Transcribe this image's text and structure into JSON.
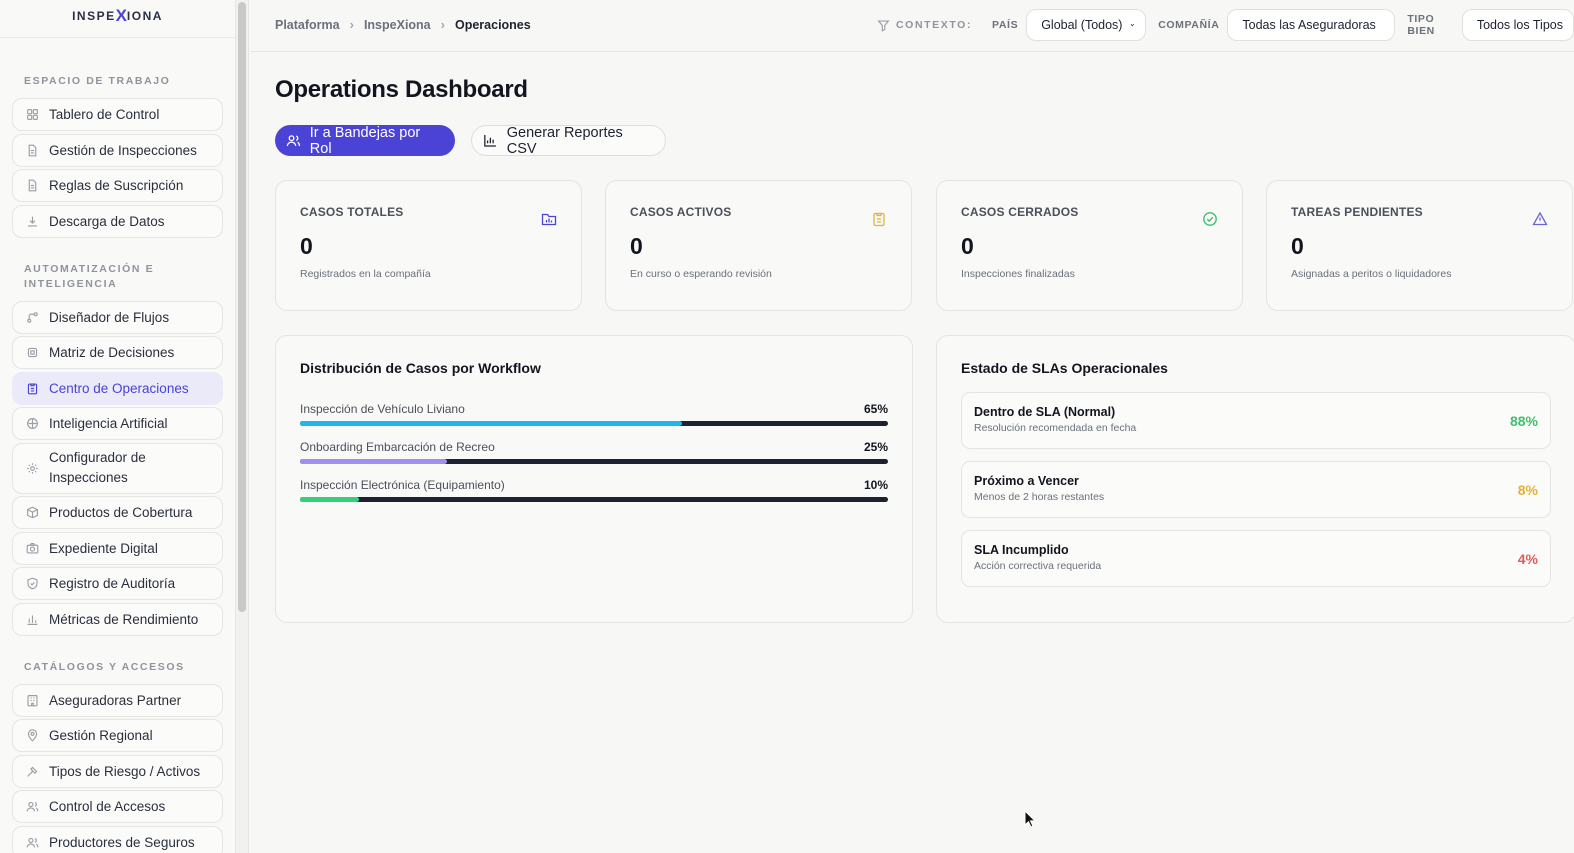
{
  "brand": {
    "pre": "INSPE",
    "x": "X",
    "post": "IONA"
  },
  "sidebar": {
    "sections": [
      {
        "title": "ESPACIO DE TRABAJO",
        "items": [
          {
            "label": "Tablero de Control",
            "icon": "grid-icon"
          },
          {
            "label": "Gestión de Inspecciones",
            "icon": "document-icon"
          },
          {
            "label": "Reglas de Suscripción",
            "icon": "document-icon"
          },
          {
            "label": "Descarga de Datos",
            "icon": "download-icon"
          }
        ]
      },
      {
        "title": "AUTOMATIZACIÓN E INTELIGENCIA",
        "items": [
          {
            "label": "Diseñador de Flujos",
            "icon": "workflow-icon"
          },
          {
            "label": "Matriz de Decisiones",
            "icon": "cpu-icon"
          },
          {
            "label": "Centro de Operaciones",
            "icon": "clipboard-icon",
            "active": true
          },
          {
            "label": "Inteligencia Artificial",
            "icon": "brain-icon"
          },
          {
            "label": "Configurador de Inspecciones",
            "icon": "gear-icon",
            "tall": true
          },
          {
            "label": "Productos de Cobertura",
            "icon": "package-icon"
          },
          {
            "label": "Expediente Digital",
            "icon": "camera-icon"
          },
          {
            "label": "Registro de Auditoría",
            "icon": "shield-icon"
          },
          {
            "label": "Métricas de Rendimiento",
            "icon": "bar-chart-icon"
          }
        ]
      },
      {
        "title": "CATÁLOGOS Y ACCESOS",
        "items": [
          {
            "label": "Aseguradoras Partner",
            "icon": "building-icon"
          },
          {
            "label": "Gestión Regional",
            "icon": "map-pin-icon"
          },
          {
            "label": "Tipos de Riesgo / Activos",
            "icon": "hammer-icon"
          },
          {
            "label": "Control de Accesos",
            "icon": "users-icon"
          },
          {
            "label": "Productores de Seguros",
            "icon": "users-icon"
          }
        ]
      }
    ]
  },
  "breadcrumb": [
    "Plataforma",
    "InspeXiona",
    "Operaciones"
  ],
  "context": {
    "label": "CONTEXTO:",
    "filters": [
      {
        "label": "PAÍS",
        "value": "Global (Todos)"
      },
      {
        "label": "COMPAÑÍA",
        "value": "Todas las Aseguradoras"
      },
      {
        "label": "TIPO BIEN",
        "value": "Todos los Tipos"
      }
    ]
  },
  "page": {
    "title": "Operations Dashboard",
    "primary_action": "Ir a Bandejas por Rol",
    "secondary_action": "Generar Reportes CSV"
  },
  "stats": [
    {
      "title": "CASOS TOTALES",
      "value": "0",
      "desc": "Registrados en la compañía",
      "icon": "folder-chart-icon",
      "color": "#4a43d6"
    },
    {
      "title": "CASOS ACTIVOS",
      "value": "0",
      "desc": "En curso o esperando revisión",
      "icon": "clipboard-icon",
      "color": "#e3b23c"
    },
    {
      "title": "CASOS CERRADOS",
      "value": "0",
      "desc": "Inspecciones finalizadas",
      "icon": "check-circle-icon",
      "color": "#3fbf6e"
    },
    {
      "title": "TAREAS PENDIENTES",
      "value": "0",
      "desc": "Asignadas a peritos o liquidadores",
      "icon": "warning-icon",
      "color": "#6a64d8"
    }
  ],
  "workflow_panel": {
    "title": "Distribución de Casos por Workflow",
    "rows": [
      {
        "label": "Inspección de Vehículo Liviano",
        "pct_label": "65%",
        "value": 0.65,
        "color": "#1fb6ee"
      },
      {
        "label": "Onboarding Embarcación de Recreo",
        "pct_label": "25%",
        "value": 0.25,
        "color": "#a08ff0"
      },
      {
        "label": "Inspección Electrónica (Equipamiento)",
        "pct_label": "10%",
        "value": 0.1,
        "color": "#34d07a"
      }
    ]
  },
  "sla_panel": {
    "title": "Estado de SLAs Operacionales",
    "rows": [
      {
        "title": "Dentro de SLA (Normal)",
        "sub": "Resolución recomendada en fecha",
        "pct": "88%",
        "color": "#3fbf6e"
      },
      {
        "title": "Próximo a Vencer",
        "sub": "Menos de 2 horas restantes",
        "pct": "8%",
        "color": "#e3b23c"
      },
      {
        "title": "SLA Incumplido",
        "sub": "Acción correctiva requerida",
        "pct": "4%",
        "color": "#e05c5c"
      }
    ]
  }
}
